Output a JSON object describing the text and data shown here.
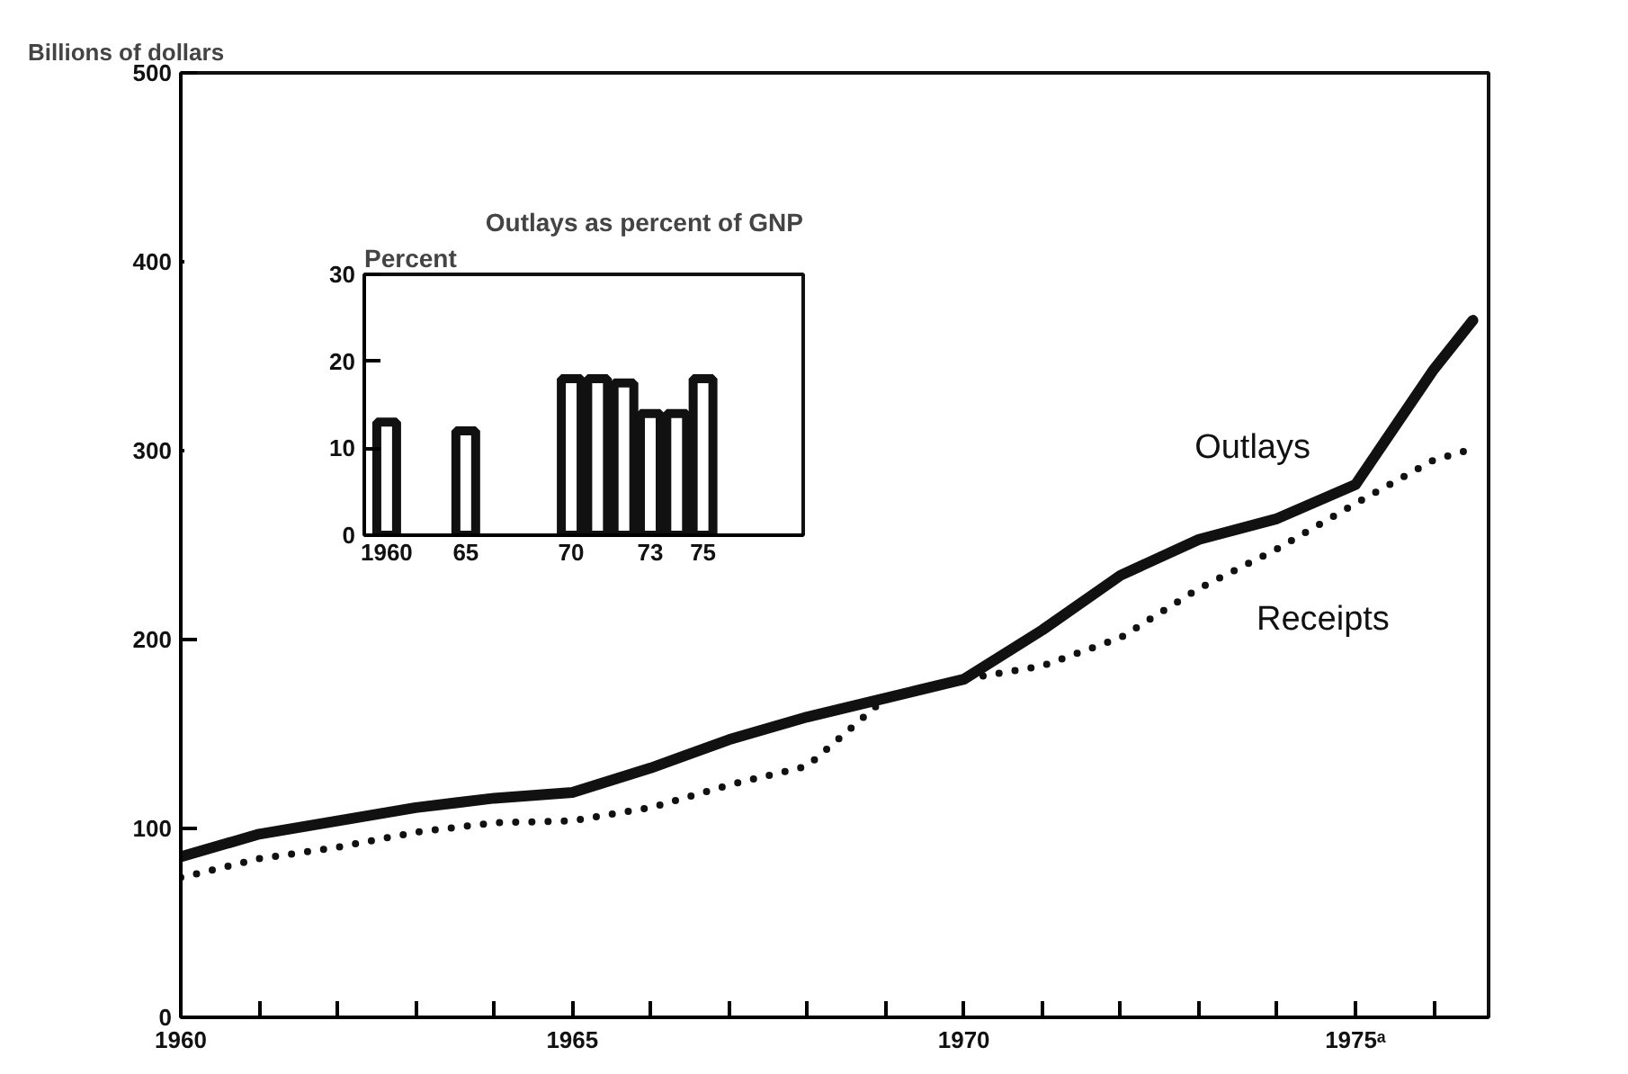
{
  "chart_data": [
    {
      "type": "line",
      "ylabel": "Billions of dollars",
      "x": [
        1960,
        1961,
        1962,
        1963,
        1964,
        1965,
        1966,
        1967,
        1968,
        1969,
        1970,
        1971,
        1972,
        1973,
        1974,
        1975,
        1976,
        1976.5
      ],
      "series": [
        {
          "name": "Outlays",
          "color": "#111111",
          "line_style": "solid",
          "values": [
            85,
            97,
            104,
            111,
            116,
            119,
            132,
            147,
            159,
            169,
            179,
            205,
            234,
            253,
            264,
            282,
            343,
            369
          ]
        },
        {
          "name": "Receipts",
          "color": "#111111",
          "line_style": "dotted",
          "values": [
            74,
            84,
            90,
            98,
            103,
            104,
            111,
            123,
            133,
            169,
            179,
            186,
            201,
            227,
            248,
            272,
            295,
            301
          ]
        }
      ],
      "xlim": [
        1960,
        1976.7
      ],
      "ylim": [
        0,
        500
      ],
      "xticks": [
        {
          "value": 1960,
          "label": "1960"
        },
        {
          "value": 1961,
          "label": null
        },
        {
          "value": 1962,
          "label": null
        },
        {
          "value": 1963,
          "label": null
        },
        {
          "value": 1964,
          "label": null
        },
        {
          "value": 1965,
          "label": "1965"
        },
        {
          "value": 1966,
          "label": null
        },
        {
          "value": 1967,
          "label": null
        },
        {
          "value": 1968,
          "label": null
        },
        {
          "value": 1969,
          "label": null
        },
        {
          "value": 1970,
          "label": "1970"
        },
        {
          "value": 1971,
          "label": null
        },
        {
          "value": 1972,
          "label": null
        },
        {
          "value": 1973,
          "label": null
        },
        {
          "value": 1974,
          "label": null
        },
        {
          "value": 1975,
          "label": "1975ᵃ"
        },
        {
          "value": 1976,
          "label": null
        }
      ],
      "yticks": [
        0,
        100,
        200,
        300,
        400,
        500
      ],
      "grid": false
    },
    {
      "type": "bar",
      "title": "Outlays as percent of GNP",
      "ylabel": "Percent",
      "categories": [
        "1960",
        null,
        null,
        "65",
        null,
        null,
        null,
        "70",
        null,
        null,
        "73",
        null,
        "75"
      ],
      "values": [
        13,
        null,
        null,
        12,
        null,
        null,
        null,
        18,
        18,
        17.5,
        14,
        14,
        18
      ],
      "color": "#111111",
      "ylim": [
        0,
        30
      ],
      "yticks": [
        0,
        10,
        20,
        30
      ],
      "grid": false
    }
  ]
}
